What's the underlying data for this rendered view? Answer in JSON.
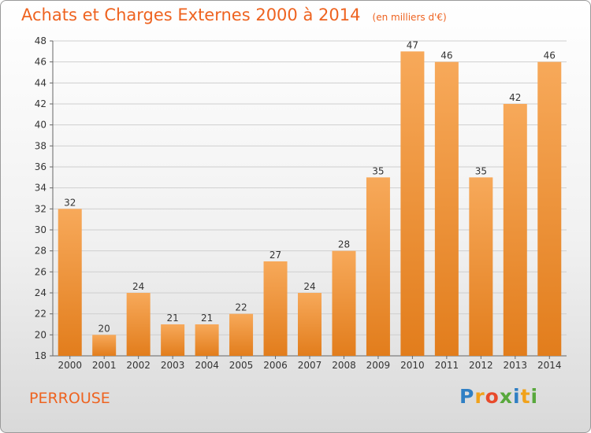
{
  "chart_data": {
    "type": "bar",
    "title": "Achats et Charges Externes 2000 à 2014",
    "subtitle": "(en milliers d'€)",
    "categories": [
      "2000",
      "2001",
      "2002",
      "2003",
      "2004",
      "2005",
      "2006",
      "2007",
      "2008",
      "2009",
      "2010",
      "2011",
      "2012",
      "2013",
      "2014"
    ],
    "values": [
      32,
      20,
      24,
      21,
      21,
      22,
      27,
      24,
      28,
      35,
      47,
      46,
      35,
      42,
      46
    ],
    "ylim": [
      18,
      48
    ],
    "yticks": [
      18,
      20,
      22,
      24,
      26,
      28,
      30,
      32,
      34,
      36,
      38,
      40,
      42,
      44,
      46,
      48
    ],
    "grid": true,
    "colors": {
      "bar_light": "#f7a95a",
      "bar_dark": "#e27d1c",
      "grid": "#cfcfcf",
      "text": "#333333",
      "title": "#ee6320"
    }
  },
  "commune": "PERROUSE",
  "logo": {
    "letters": [
      "P",
      "r",
      "o",
      "x",
      "i",
      "t",
      "i"
    ],
    "colors": [
      "#2f7fc4",
      "#f1a21b",
      "#e84a2b",
      "#58a83c",
      "#2f7fc4",
      "#f1a21b",
      "#58a83c"
    ]
  }
}
